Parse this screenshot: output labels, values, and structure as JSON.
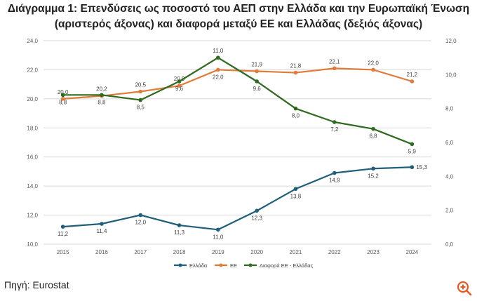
{
  "title_line1": "Διάγραμμα 1: Επενδύσεις ως ποσοστό του ΑΕΠ στην Ελλάδα και την Ευρωπαϊκή Ένωση",
  "title_line2": "(αριστερός άξονας) και διαφορά μεταξύ ΕΕ και Ελλάδας (δεξιός άξονας)",
  "source": "Πηγή: Eurostat",
  "zoom_icon": "zoom-in-icon",
  "colors": {
    "greece": "#1f5f7a",
    "eu": "#e07b3a",
    "diff": "#2e6b1f",
    "grid": "#d9d9d9",
    "zoom": "#e9591f"
  },
  "chart_data": {
    "type": "line",
    "categories": [
      "2015",
      "2016",
      "2017",
      "2018",
      "2019",
      "2020",
      "2021",
      "2022",
      "2023",
      "2024"
    ],
    "y_left": {
      "ylim": [
        10,
        24
      ],
      "ticks": [
        "10,0",
        "12,0",
        "14,0",
        "16,0",
        "18,0",
        "20,0",
        "22,0",
        "24,0"
      ]
    },
    "y_right": {
      "ylim": [
        0,
        12
      ],
      "ticks": [
        "0,0",
        "2,0",
        "4,0",
        "6,0",
        "8,0",
        "10,0",
        "12,0"
      ]
    },
    "grid": true,
    "legend_position": "bottom",
    "series": [
      {
        "name": "Ελλάδα",
        "axis": "left",
        "values": [
          11.2,
          11.4,
          12.0,
          11.3,
          11.0,
          12.3,
          13.8,
          14.9,
          15.2,
          15.3
        ],
        "labels": [
          "11,2",
          "11,4",
          "12,0",
          "11,3",
          "11,0",
          "12,3",
          "13,8",
          "14,9",
          "15,2",
          "15,3"
        ]
      },
      {
        "name": "ΕΕ",
        "axis": "left",
        "values": [
          20.0,
          20.2,
          20.5,
          20.9,
          22.0,
          21.9,
          21.8,
          22.1,
          22.0,
          21.2
        ],
        "labels": [
          "20,0",
          "20,2",
          "20,5",
          "20,9",
          "22,0",
          "21,9",
          "21,8",
          "22,1",
          "22,0",
          "21,2"
        ]
      },
      {
        "name": "Διαφορά ΕΕ - Ελλάδας",
        "axis": "right",
        "values": [
          8.8,
          8.8,
          8.5,
          9.6,
          11.0,
          9.6,
          8.0,
          7.2,
          6.8,
          5.9
        ],
        "labels": [
          "8,8",
          "8,8",
          "8,5",
          "9,6",
          "11,0",
          "9,6",
          "8,0",
          "7,2",
          "6,8",
          "5,9"
        ]
      }
    ]
  }
}
